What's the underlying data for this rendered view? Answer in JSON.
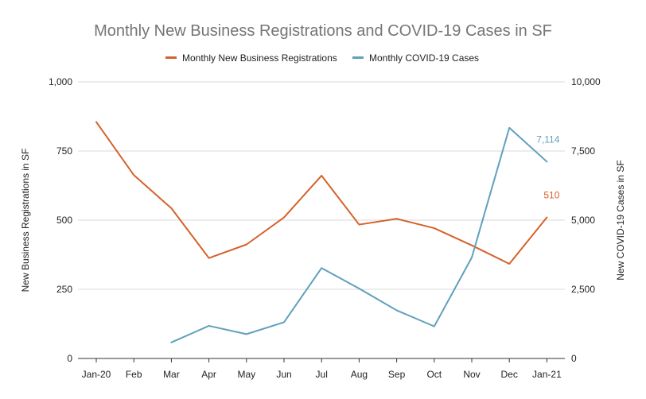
{
  "chart_data": {
    "type": "line",
    "title": "Monthly New Business Registrations and COVID-19 Cases in SF",
    "categories": [
      "Jan-20",
      "Feb",
      "Mar",
      "Apr",
      "May",
      "Jun",
      "Jul",
      "Aug",
      "Sep",
      "Oct",
      "Nov",
      "Dec",
      "Jan-21"
    ],
    "ylabel": "New Business Registrations in SF",
    "y2label": "New COVID-19 Cases in SF",
    "ylim": [
      0,
      1000
    ],
    "y2lim": [
      0,
      10000
    ],
    "yticks": [
      "0",
      "250",
      "500",
      "750",
      "1,000"
    ],
    "y2ticks": [
      "0",
      "2,500",
      "5,000",
      "7,500",
      "10,000"
    ],
    "grid": true,
    "legend_position": "top-center",
    "series": [
      {
        "name": "Monthly New Business Registrations",
        "axis": "left",
        "color": "#d4622b",
        "values": [
          855,
          663,
          543,
          363,
          412,
          510,
          661,
          484,
          505,
          471,
          409,
          342,
          510
        ],
        "end_label": "510"
      },
      {
        "name": "Monthly COVID-19 Cases",
        "axis": "right",
        "color": "#5fa0bd",
        "values": [
          null,
          null,
          580,
          1180,
          880,
          1310,
          3270,
          2530,
          1740,
          1160,
          3650,
          8340,
          7114
        ],
        "end_label": "7,114"
      }
    ]
  }
}
